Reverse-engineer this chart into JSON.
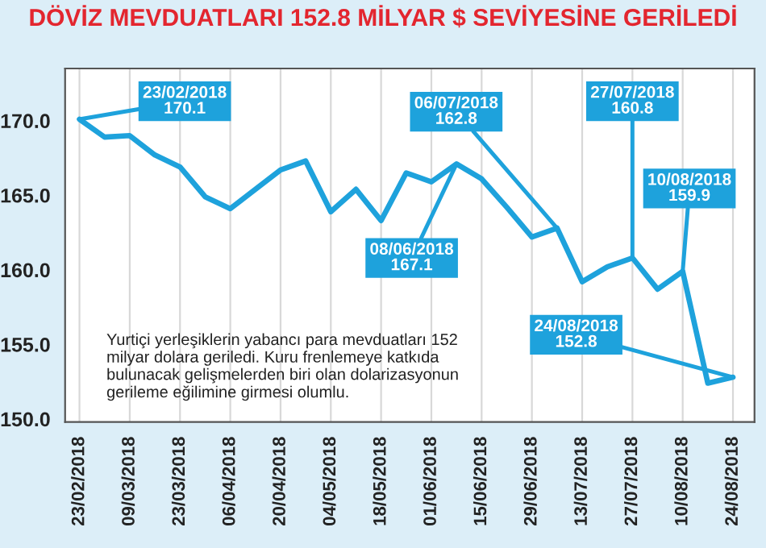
{
  "chart_data": {
    "type": "line",
    "title": "DÖVİZ MEVDUATLARI 152.8 MİLYAR $ SEVİYESİNE GERİLEDİ",
    "x": [
      "2018-02-23",
      "2018-03-02",
      "2018-03-09",
      "2018-03-16",
      "2018-03-23",
      "2018-03-30",
      "2018-04-06",
      "2018-04-13",
      "2018-04-20",
      "2018-04-27",
      "2018-05-04",
      "2018-05-11",
      "2018-05-18",
      "2018-05-25",
      "2018-06-01",
      "2018-06-08",
      "2018-06-15",
      "2018-06-22",
      "2018-06-29",
      "2018-07-06",
      "2018-07-13",
      "2018-07-20",
      "2018-07-27",
      "2018-08-03",
      "2018-08-10",
      "2018-08-17",
      "2018-08-24"
    ],
    "series": [
      {
        "color": "#1ea2dc",
        "values": [
          170.1,
          168.9,
          169.0,
          167.7,
          166.9,
          164.9,
          164.1,
          165.4,
          166.7,
          167.3,
          163.9,
          165.4,
          163.3,
          166.5,
          165.9,
          167.1,
          166.1,
          164.2,
          162.2,
          162.8,
          159.2,
          160.2,
          160.8,
          158.7,
          159.9,
          152.4,
          152.8
        ]
      }
    ],
    "ylim": [
      149.8,
      173.5
    ],
    "yticks": [
      {
        "value": 150,
        "label": "150.0"
      },
      {
        "value": 155,
        "label": "155.0"
      },
      {
        "value": 160,
        "label": "160.0"
      },
      {
        "value": 165,
        "label": "165.0"
      },
      {
        "value": 170,
        "label": "170.0"
      }
    ],
    "xlim": [
      "2018-02-19",
      "2018-08-30"
    ],
    "xticks": [
      {
        "value": "2018-02-23",
        "label": "23/02/2018"
      },
      {
        "value": "2018-03-09",
        "label": "09/03/2018"
      },
      {
        "value": "2018-03-23",
        "label": "23/03/2018"
      },
      {
        "value": "2018-04-06",
        "label": "06/04/2018"
      },
      {
        "value": "2018-04-20",
        "label": "20/04/2018"
      },
      {
        "value": "2018-05-04",
        "label": "04/05/2018"
      },
      {
        "value": "2018-05-18",
        "label": "18/05/2018"
      },
      {
        "value": "2018-06-01",
        "label": "01/06/2018"
      },
      {
        "value": "2018-06-15",
        "label": "15/06/2018"
      },
      {
        "value": "2018-06-29",
        "label": "29/06/2018"
      },
      {
        "value": "2018-07-13",
        "label": "13/07/2018"
      },
      {
        "value": "2018-07-27",
        "label": "27/07/2018"
      },
      {
        "value": "2018-08-10",
        "label": "10/08/2018"
      },
      {
        "value": "2018-08-24",
        "label": "24/08/2018"
      }
    ],
    "grid": "x",
    "line_style": "solid",
    "marker": "none",
    "annotations": [
      {
        "text": "23/02/2018\n170.1",
        "x": "2018-02-23",
        "y": 170.1
      },
      {
        "text": "08/06/2018\n167.1",
        "x": "2018-06-08",
        "y": 167.1
      },
      {
        "text": "06/07/2018\n162.8",
        "x": "2018-07-06",
        "y": 162.8
      },
      {
        "text": "27/07/2018\n160.8",
        "x": "2018-07-27",
        "y": 160.8
      },
      {
        "text": "10/08/2018\n159.9",
        "x": "2018-08-10",
        "y": 159.9
      },
      {
        "text": "24/08/2018\n152.8",
        "x": "2018-08-24",
        "y": 152.8
      },
      "Yurtiçi yerleşiklerin yabancı para mevduatları 152\nmilyar dolara geriledi. Kuru frenlemeye katkıda\nbulunacak gelişmelerden biri olan dolarizasyonun\ngerileme eğilimine girmesi olumlu."
    ]
  }
}
